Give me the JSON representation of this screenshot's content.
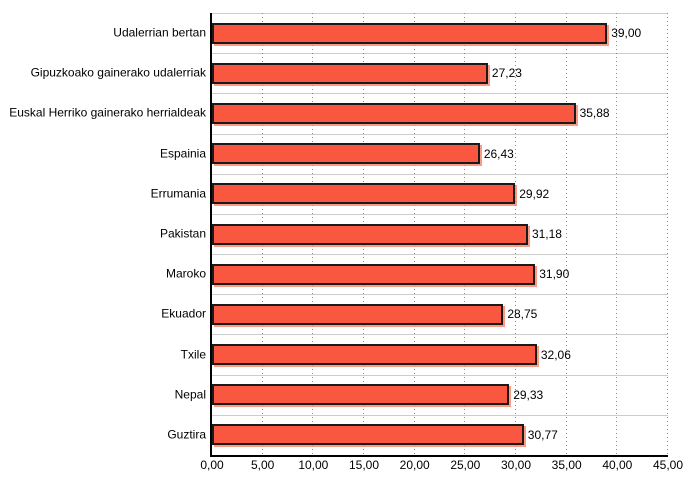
{
  "chart_data": {
    "type": "bar",
    "orientation": "horizontal",
    "title": "",
    "xlabel": "",
    "ylabel": "",
    "categories": [
      "Udalerrian bertan",
      "Gipuzkoako gainerako udalerriak",
      "Euskal Herriko gainerako herrialdeak",
      "Espainia",
      "Errumania",
      "Pakistan",
      "Maroko",
      "Ekuador",
      "Txile",
      "Nepal",
      "Guztira"
    ],
    "values": [
      39.0,
      27.23,
      35.88,
      26.43,
      29.92,
      31.18,
      31.9,
      28.75,
      32.06,
      29.33,
      30.77
    ],
    "value_labels": [
      "39,00",
      "27,23",
      "35,88",
      "26,43",
      "29,92",
      "31,18",
      "31,90",
      "28,75",
      "32,06",
      "29,33",
      "30,77"
    ],
    "xlim": [
      0,
      45
    ],
    "x_ticks": [
      0,
      5,
      10,
      15,
      20,
      25,
      30,
      35,
      40,
      45
    ],
    "x_tick_labels": [
      "0,00",
      "5,00",
      "10,00",
      "15,00",
      "20,00",
      "25,00",
      "30,00",
      "35,00",
      "40,00",
      "45,00"
    ],
    "grid": {
      "vertical": "dotted",
      "horizontal_band_lines": true
    },
    "legend": "none",
    "colors": {
      "bar_fill": "#F95740",
      "bar_border": "#1A1A1A",
      "bar_shadow": "rgba(248,120,95,0.75)",
      "gridline": "#8C8C8C",
      "band_line": "#CCCCCC",
      "axis": "#000000",
      "text": "#000000",
      "background": "#FFFFFF"
    }
  }
}
